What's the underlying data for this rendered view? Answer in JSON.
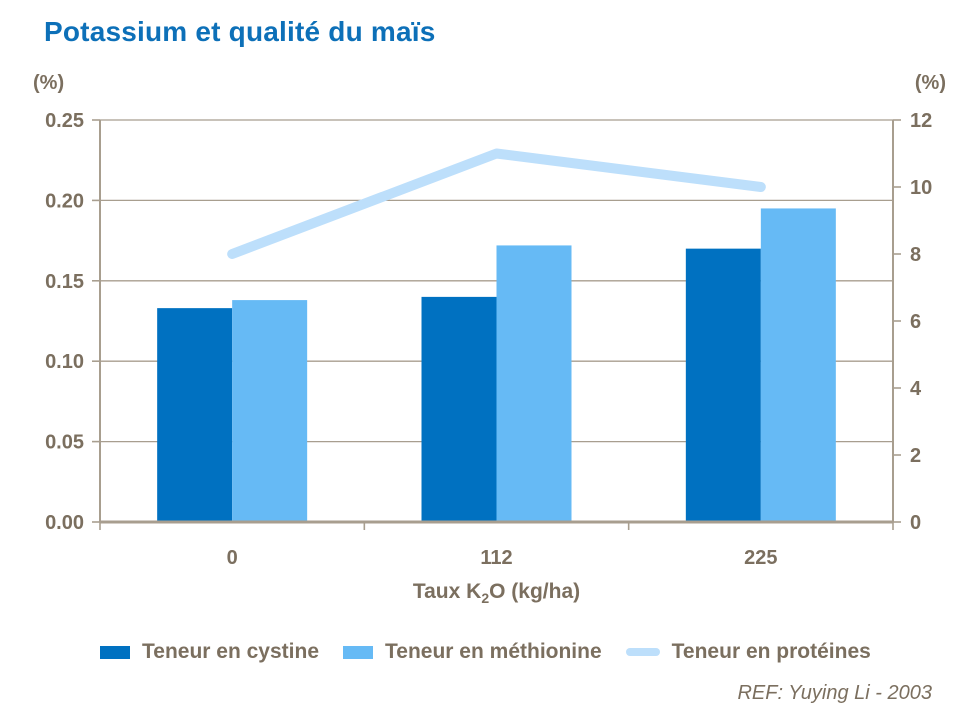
{
  "slide": {
    "title": "Potassium et qualité du maïs",
    "reference": "REF: Yuying Li - 2003"
  },
  "colors": {
    "background": "#FFFFFF",
    "title_blue": "#0D70B8",
    "text_taupe": "#7B6F5F",
    "grid_taupe": "#A89E8F",
    "cystine_blue": "#0071C1",
    "methionine_blue": "#66BAF5",
    "proteines_blue": "#BDDFFB"
  },
  "chart_data": {
    "type": "combo_bar_line",
    "categories": [
      "0",
      "112",
      "225"
    ],
    "series": [
      {
        "name": "Teneur en cystine",
        "kind": "bar",
        "axis": "left",
        "color_key": "cystine_blue",
        "values": [
          0.133,
          0.14,
          0.17
        ]
      },
      {
        "name": "Teneur en méthionine",
        "kind": "bar",
        "axis": "left",
        "color_key": "methionine_blue",
        "values": [
          0.138,
          0.172,
          0.195
        ]
      },
      {
        "name": "Teneur en protéines",
        "kind": "line",
        "axis": "right",
        "color_key": "proteines_blue",
        "values": [
          8,
          11,
          10
        ]
      }
    ],
    "left_axis": {
      "unit": "(%)",
      "min": 0,
      "max": 0.25,
      "step": 0.05,
      "tick_labels": [
        "0.00",
        "0.05",
        "0.10",
        "0.15",
        "0.20",
        "0.25"
      ]
    },
    "right_axis": {
      "unit": "(%)",
      "min": 0,
      "max": 12,
      "step": 2,
      "tick_labels": [
        "0",
        "2",
        "4",
        "6",
        "8",
        "10",
        "12"
      ]
    },
    "xlabel": "Taux K2O (kg/ha)",
    "xlabel_parts": {
      "prefix": "Taux K",
      "sub": "2",
      "suffix": "O (kg/ha)"
    },
    "grid": true,
    "legend_position": "bottom"
  }
}
